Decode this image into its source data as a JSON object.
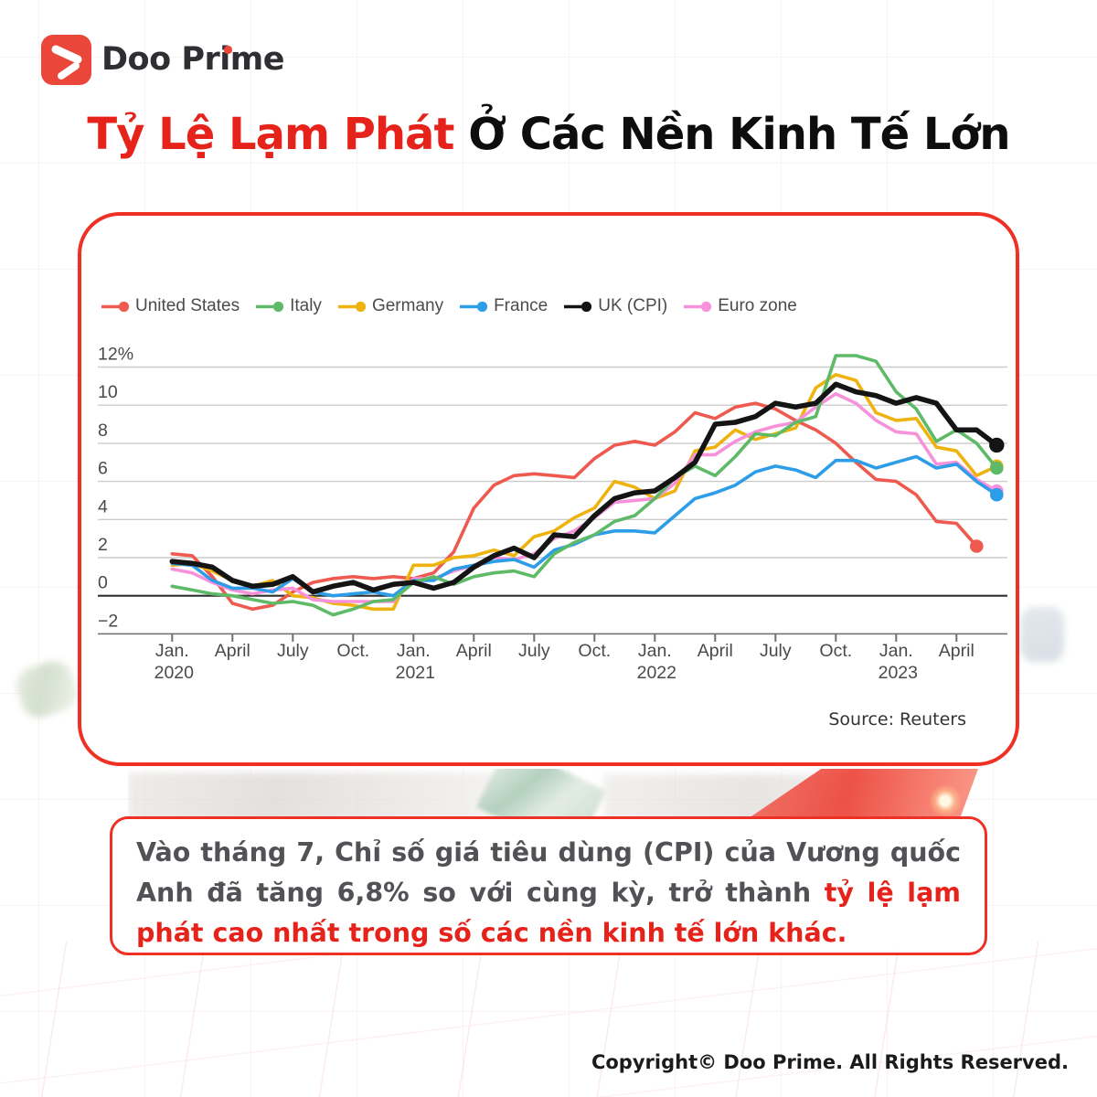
{
  "brand": {
    "name": "Doo Prime"
  },
  "title": {
    "highlight": "Tỷ Lệ Lạm Phát",
    "rest": " Ở Các Nền Kinh Tế Lớn"
  },
  "chart_card": {
    "source_label": "Source: Reuters"
  },
  "chart_data": {
    "type": "line",
    "title": "Tỷ Lệ Lạm Phát Ở Các Nền Kinh Tế Lớn",
    "x_unit": "month",
    "x_start": "Jan. 2020",
    "x_end": "June 2023",
    "ylim": [
      -2,
      12
    ],
    "grid": "horizontal",
    "legend_position": "top-left",
    "y_ticks": [
      {
        "v": 12,
        "label": "12%"
      },
      {
        "v": 10,
        "label": "10"
      },
      {
        "v": 8,
        "label": "8"
      },
      {
        "v": 6,
        "label": "6"
      },
      {
        "v": 4,
        "label": "4"
      },
      {
        "v": 2,
        "label": "2"
      },
      {
        "v": 0,
        "label": "0"
      },
      {
        "v": -2,
        "label": "−2"
      }
    ],
    "x_tick_labels": [
      {
        "m": "Jan.",
        "y": "2020"
      },
      {
        "m": "April"
      },
      {
        "m": "July"
      },
      {
        "m": "Oct."
      },
      {
        "m": "Jan.",
        "y": "2021"
      },
      {
        "m": "April"
      },
      {
        "m": "July"
      },
      {
        "m": "Oct."
      },
      {
        "m": "Jan.",
        "y": "2022"
      },
      {
        "m": "April"
      },
      {
        "m": "July"
      },
      {
        "m": "Oct."
      },
      {
        "m": "Jan.",
        "y": "2023"
      },
      {
        "m": "April"
      }
    ],
    "series": [
      {
        "name": "United States",
        "color": "#ee5a4f",
        "values": [
          2.2,
          2.1,
          1.0,
          -0.4,
          -0.7,
          -0.5,
          0.2,
          0.7,
          0.9,
          1.0,
          0.9,
          1.0,
          0.9,
          1.2,
          2.3,
          4.6,
          5.8,
          6.3,
          6.4,
          6.3,
          6.2,
          7.2,
          7.9,
          8.1,
          7.9,
          8.6,
          9.6,
          9.3,
          9.9,
          10.1,
          9.8,
          9.2,
          8.7,
          8.0,
          7.0,
          6.1,
          6.0,
          5.3,
          3.9,
          3.8,
          2.6,
          null
        ]
      },
      {
        "name": "Italy",
        "color": "#5fba68",
        "values": [
          0.5,
          0.3,
          0.1,
          0.0,
          -0.2,
          -0.4,
          -0.3,
          -0.5,
          -1.0,
          -0.7,
          -0.3,
          -0.2,
          0.7,
          1.0,
          0.6,
          1.0,
          1.2,
          1.3,
          1.0,
          2.2,
          2.8,
          3.2,
          3.9,
          4.2,
          5.1,
          6.2,
          6.8,
          6.3,
          7.3,
          8.5,
          8.4,
          9.1,
          9.4,
          12.6,
          12.6,
          12.3,
          10.7,
          9.8,
          8.1,
          8.7,
          8.0,
          6.7
        ]
      },
      {
        "name": "Germany",
        "color": "#efb30f",
        "values": [
          1.6,
          1.7,
          1.3,
          0.8,
          0.5,
          0.8,
          0.0,
          -0.1,
          -0.4,
          -0.5,
          -0.7,
          -0.7,
          1.6,
          1.6,
          2.0,
          2.1,
          2.4,
          2.1,
          3.1,
          3.4,
          4.1,
          4.6,
          6.0,
          5.7,
          5.1,
          5.5,
          7.6,
          7.8,
          8.7,
          8.2,
          8.5,
          8.8,
          10.9,
          11.6,
          11.3,
          9.6,
          9.2,
          9.3,
          7.8,
          7.6,
          6.3,
          6.8
        ]
      },
      {
        "name": "France",
        "color": "#2d9de8",
        "values": [
          1.7,
          1.6,
          0.8,
          0.4,
          0.4,
          0.2,
          0.9,
          0.2,
          0.0,
          0.1,
          0.2,
          0.0,
          0.8,
          0.8,
          1.4,
          1.6,
          1.8,
          1.9,
          1.5,
          2.4,
          2.7,
          3.2,
          3.4,
          3.4,
          3.3,
          4.2,
          5.1,
          5.4,
          5.8,
          6.5,
          6.8,
          6.6,
          6.2,
          7.1,
          7.1,
          6.7,
          7.0,
          7.3,
          6.7,
          6.9,
          6.0,
          5.3
        ]
      },
      {
        "name": "UK (CPI)",
        "color": "#141414",
        "values": [
          1.8,
          1.7,
          1.5,
          0.8,
          0.5,
          0.6,
          1.0,
          0.2,
          0.5,
          0.7,
          0.3,
          0.6,
          0.7,
          0.4,
          0.7,
          1.5,
          2.1,
          2.5,
          2.0,
          3.2,
          3.1,
          4.2,
          5.1,
          5.4,
          5.5,
          6.2,
          7.0,
          9.0,
          9.1,
          9.4,
          10.1,
          9.9,
          10.1,
          11.1,
          10.7,
          10.5,
          10.1,
          10.4,
          10.1,
          8.7,
          8.7,
          7.9
        ]
      },
      {
        "name": "Euro zone",
        "color": "#f792da",
        "values": [
          1.4,
          1.2,
          0.7,
          0.3,
          0.1,
          0.3,
          0.4,
          -0.2,
          -0.3,
          -0.3,
          -0.3,
          -0.3,
          0.9,
          0.9,
          1.3,
          1.6,
          2.0,
          1.9,
          2.2,
          3.0,
          3.4,
          4.1,
          4.9,
          5.0,
          5.1,
          5.9,
          7.4,
          7.4,
          8.1,
          8.6,
          8.9,
          9.1,
          9.9,
          10.6,
          10.1,
          9.2,
          8.6,
          8.5,
          6.9,
          7.0,
          6.1,
          5.5
        ]
      }
    ]
  },
  "callout": {
    "text_normal": "Vào tháng 7, Chỉ số giá tiêu dùng (CPI) của Vương quốc Anh đã tăng 6,8% so với cùng kỳ, trở thành ",
    "text_highlight": "tỷ lệ lạm phát cao nhất trong số các nền kinh tế lớn khác."
  },
  "footer": {
    "copyright": "Copyright© Doo Prime. All Rights Reserved."
  }
}
